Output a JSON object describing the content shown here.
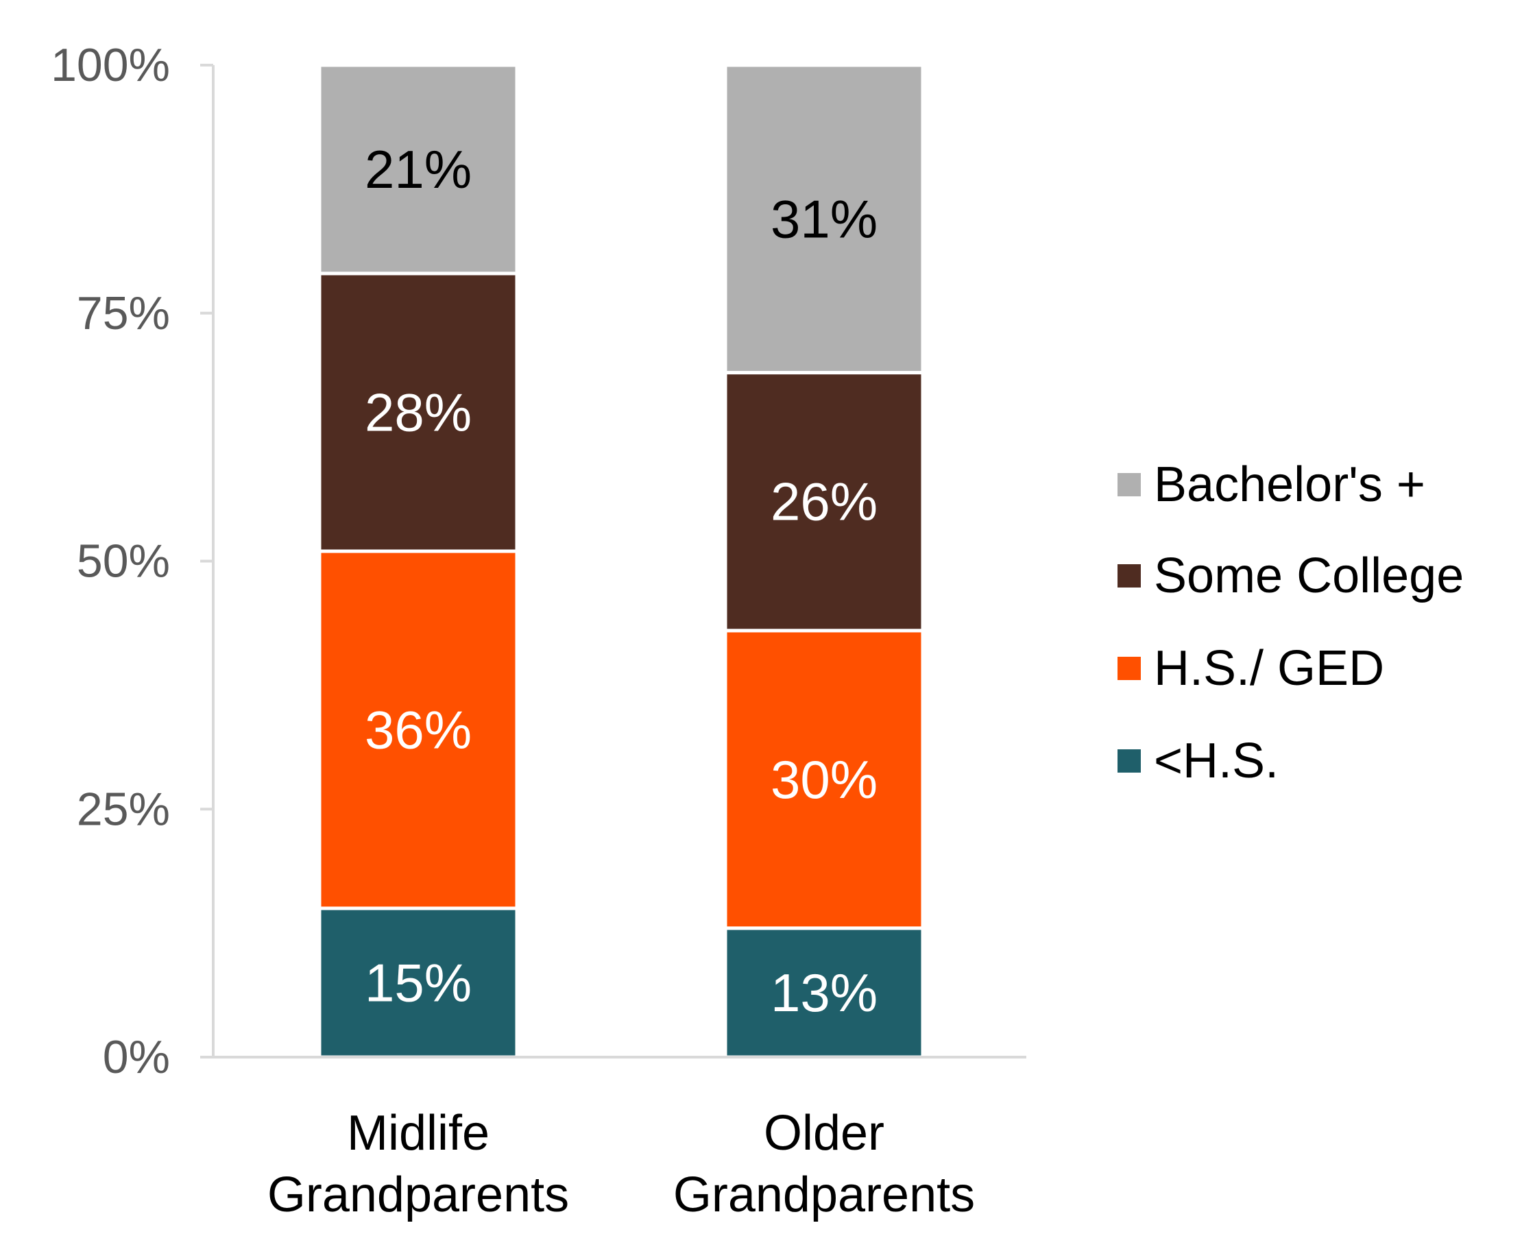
{
  "chart_data": {
    "type": "bar",
    "stacked": true,
    "categories": [
      "Midlife Grandparents",
      "Older Grandparents"
    ],
    "category_lines": [
      [
        "Midlife",
        "Grandparents"
      ],
      [
        "Older",
        "Grandparents"
      ]
    ],
    "series": [
      {
        "name": "<H.S.",
        "color": "#1f5f6a",
        "label_color": "#ffffff",
        "values": [
          15,
          13
        ]
      },
      {
        "name": "H.S./ GED",
        "color": "#ff5000",
        "label_color": "#ffffff",
        "values": [
          36,
          30
        ]
      },
      {
        "name": "Some College",
        "color": "#4f2c21",
        "label_color": "#ffffff",
        "values": [
          28,
          26
        ]
      },
      {
        "name": "Bachelor's +",
        "color": "#b0b0b0",
        "label_color": "#000000",
        "values": [
          21,
          31
        ]
      }
    ],
    "legend_order": [
      "Bachelor's +",
      "Some College",
      "H.S./ GED",
      "<H.S."
    ],
    "y_ticks": [
      "0%",
      "25%",
      "50%",
      "75%",
      "100%"
    ],
    "ylim": [
      0,
      100
    ],
    "value_suffix": "%",
    "grid": false,
    "legend_position": "right",
    "title": "",
    "xlabel": "",
    "ylabel": ""
  }
}
